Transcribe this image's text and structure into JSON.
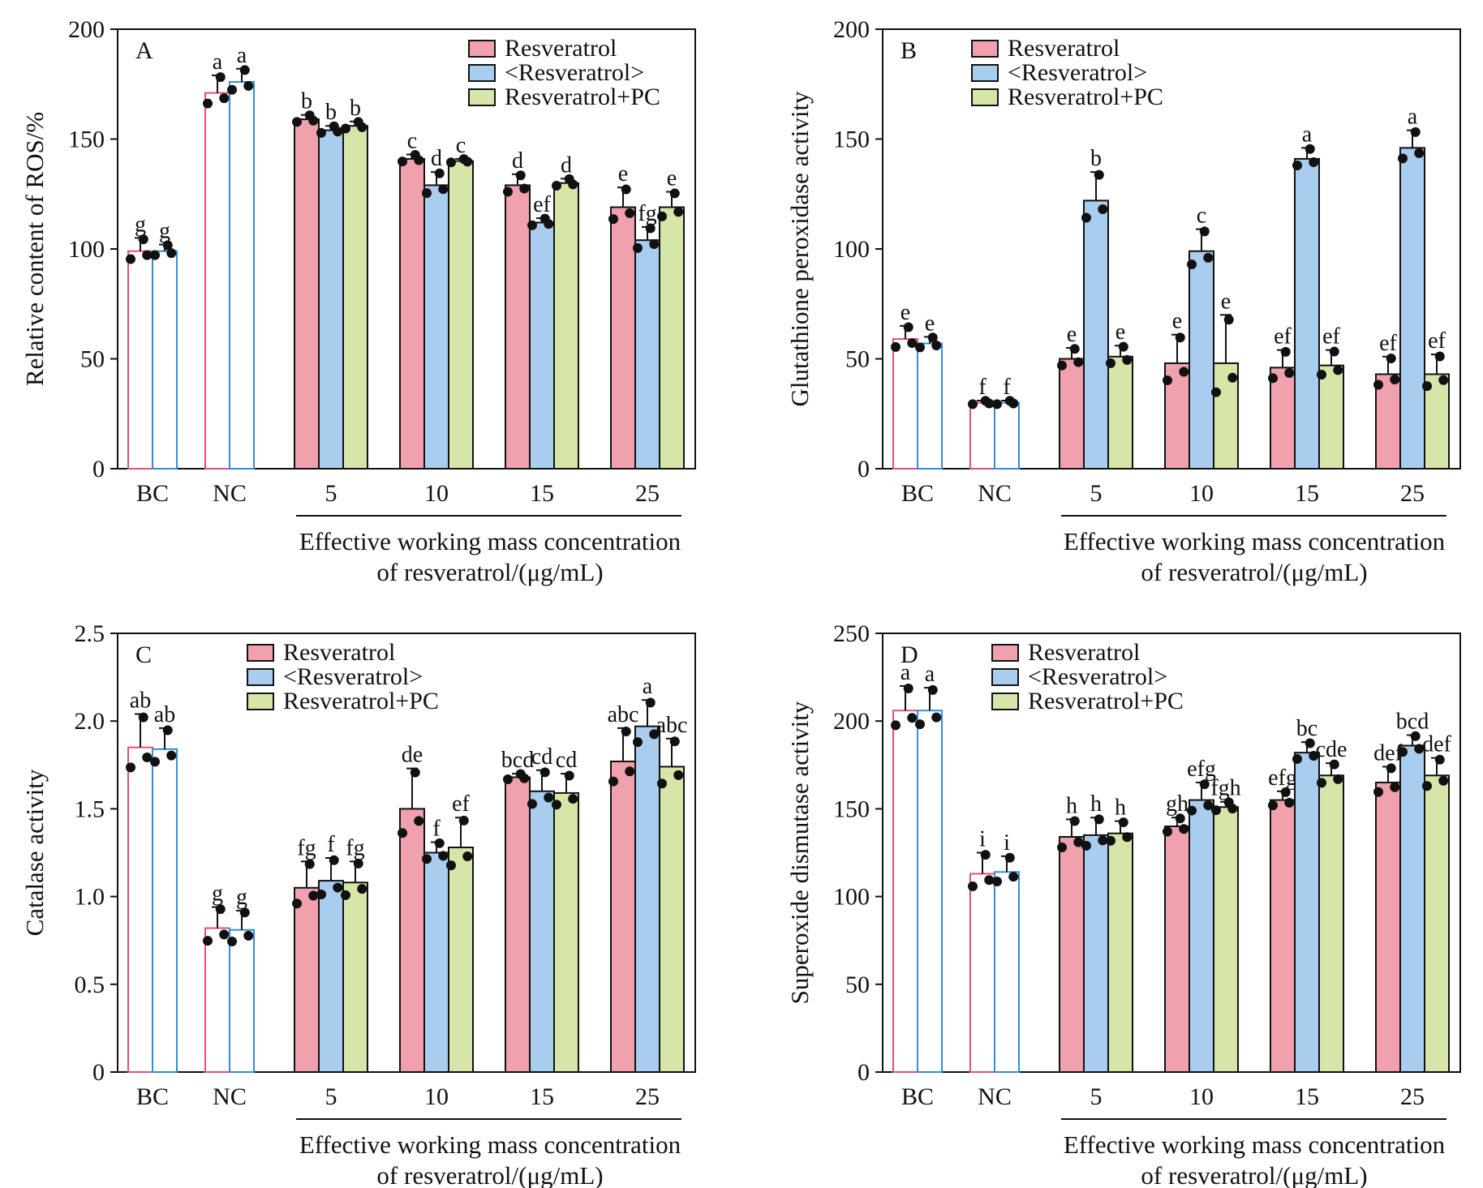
{
  "chart_data": [
    {
      "type": "bar",
      "panel": "A",
      "ylabel": "Relative content of ROS/%",
      "xlabel_line1": "Effective working mass concentration",
      "xlabel_line2": "of resveratrol/(μg/mL)",
      "ylim": [
        0,
        200
      ],
      "yticks": [
        0,
        50,
        100,
        150,
        200
      ],
      "ytick_labels": [
        "0",
        "50",
        "100",
        "150",
        "200"
      ],
      "categories": [
        "BC",
        "NC",
        "5",
        "10",
        "15",
        "25"
      ],
      "legend": [
        "Resveratrol",
        "<Resveratrol>",
        "Resveratrol+PC"
      ],
      "colors": {
        "s0": "#f0a1ad",
        "s1": "#a8cdee",
        "s2": "#d5e6a8",
        "ctrl0": "#e44d80",
        "ctrl1": "#2f8fd8"
      },
      "series": [
        {
          "name": "Resveratrol",
          "values": [
            99,
            171,
            159,
            141,
            129,
            119
          ],
          "errors": [
            6,
            8,
            2,
            2,
            5,
            9
          ],
          "letters": [
            "g",
            "a",
            "b",
            "c",
            "d",
            "e"
          ]
        },
        {
          "name": "<Resveratrol>",
          "values": [
            99,
            176,
            154,
            129,
            112,
            104
          ],
          "errors": [
            3,
            6,
            2,
            6,
            2,
            6
          ],
          "letters": [
            "g",
            "a",
            "b",
            "d",
            "ef",
            "fg"
          ]
        },
        {
          "name": "Resveratrol+PC",
          "values": [
            null,
            null,
            156,
            140,
            130,
            119
          ],
          "errors": [
            null,
            null,
            2,
            1,
            2,
            7
          ],
          "letters": [
            "",
            "",
            "b",
            "c",
            "d",
            "e"
          ]
        }
      ]
    },
    {
      "type": "bar",
      "panel": "B",
      "ylabel": "Glutathione peroxidase activity",
      "xlabel_line1": "Effective working mass concentration",
      "xlabel_line2": "of resveratrol/(μg/mL)",
      "ylim": [
        0,
        200
      ],
      "yticks": [
        0,
        50,
        100,
        150,
        200
      ],
      "ytick_labels": [
        "0",
        "50",
        "100",
        "150",
        "200"
      ],
      "categories": [
        "BC",
        "NC",
        "5",
        "10",
        "15",
        "25"
      ],
      "legend": [
        "Resveratrol",
        "<Resveratrol>",
        "Resveratrol+PC"
      ],
      "colors": {
        "s0": "#f0a1ad",
        "s1": "#a8cdee",
        "s2": "#d5e6a8",
        "ctrl0": "#e44d80",
        "ctrl1": "#2f8fd8"
      },
      "series": [
        {
          "name": "Resveratrol",
          "values": [
            59,
            30,
            50,
            48,
            46,
            43
          ],
          "errors": [
            6,
            1,
            5,
            13,
            8,
            8
          ],
          "letters": [
            "e",
            "f",
            "e",
            "e",
            "ef",
            "ef"
          ]
        },
        {
          "name": "<Resveratrol>",
          "values": [
            57,
            30,
            122,
            99,
            141,
            146
          ],
          "errors": [
            3,
            1,
            13,
            10,
            5,
            8
          ],
          "letters": [
            "e",
            "f",
            "b",
            "c",
            "a",
            "a"
          ]
        },
        {
          "name": "Resveratrol+PC",
          "values": [
            null,
            null,
            51,
            48,
            47,
            43
          ],
          "errors": [
            null,
            null,
            5,
            22,
            7,
            9
          ],
          "letters": [
            "",
            "",
            "e",
            "e",
            "ef",
            "ef"
          ]
        }
      ]
    },
    {
      "type": "bar",
      "panel": "C",
      "ylabel": "Catalase activity",
      "xlabel_line1": "Effective working mass concentration",
      "xlabel_line2": "of resveratrol/(μg/mL)",
      "ylim": [
        0,
        2.5
      ],
      "yticks": [
        0,
        0.5,
        1.0,
        1.5,
        2.0,
        2.5
      ],
      "ytick_labels": [
        "0",
        "0.5",
        "1.0",
        "1.5",
        "2.0",
        "2.5"
      ],
      "categories": [
        "BC",
        "NC",
        "5",
        "10",
        "15",
        "25"
      ],
      "legend": [
        "Resveratrol",
        "<Resveratrol>",
        "Resveratrol+PC"
      ],
      "colors": {
        "s0": "#f0a1ad",
        "s1": "#a8cdee",
        "s2": "#d5e6a8",
        "ctrl0": "#e44d80",
        "ctrl1": "#2f8fd8"
      },
      "series": [
        {
          "name": "Resveratrol",
          "values": [
            1.85,
            0.82,
            1.05,
            1.5,
            1.68,
            1.77
          ],
          "errors": [
            0.19,
            0.12,
            0.15,
            0.23,
            0.02,
            0.19
          ],
          "letters": [
            "ab",
            "g",
            "fg",
            "de",
            "bcd",
            "abc"
          ]
        },
        {
          "name": "<Resveratrol>",
          "values": [
            1.84,
            0.81,
            1.09,
            1.25,
            1.6,
            1.97
          ],
          "errors": [
            0.12,
            0.11,
            0.13,
            0.06,
            0.12,
            0.15
          ],
          "letters": [
            "ab",
            "g",
            "f",
            "f",
            "cd",
            "a"
          ]
        },
        {
          "name": "Resveratrol+PC",
          "values": [
            null,
            null,
            1.08,
            1.28,
            1.59,
            1.74
          ],
          "errors": [
            null,
            null,
            0.12,
            0.17,
            0.11,
            0.16
          ],
          "letters": [
            "",
            "",
            "fg",
            "ef",
            "cd",
            "abc"
          ]
        }
      ]
    },
    {
      "type": "bar",
      "panel": "D",
      "ylabel": "Superoxide dismutase activity",
      "xlabel_line1": "Effective working mass concentration",
      "xlabel_line2": "of resveratrol/(μg/mL)",
      "ylim": [
        0,
        250
      ],
      "yticks": [
        0,
        50,
        100,
        150,
        200,
        250
      ],
      "ytick_labels": [
        "0",
        "50",
        "100",
        "150",
        "200",
        "250"
      ],
      "categories": [
        "BC",
        "NC",
        "5",
        "10",
        "15",
        "25"
      ],
      "legend": [
        "Resveratrol",
        "<Resveratrol>",
        "Resveratrol+PC"
      ],
      "colors": {
        "s0": "#f0a1ad",
        "s1": "#a8cdee",
        "s2": "#d5e6a8",
        "ctrl0": "#e44d80",
        "ctrl1": "#2f8fd8"
      },
      "series": [
        {
          "name": "Resveratrol",
          "values": [
            206,
            113,
            134,
            140,
            155,
            165
          ],
          "errors": [
            14,
            12,
            10,
            5,
            5,
            9
          ],
          "letters": [
            "a",
            "i",
            "h",
            "gh",
            "efg",
            "def"
          ]
        },
        {
          "name": "<Resveratrol>",
          "values": [
            206,
            114,
            135,
            155,
            182,
            186
          ],
          "errors": [
            13,
            9,
            10,
            10,
            6,
            6
          ],
          "letters": [
            "a",
            "i",
            "h",
            "efg",
            "bc",
            "bcd"
          ]
        },
        {
          "name": "Resveratrol+PC",
          "values": [
            null,
            null,
            136,
            151,
            169,
            169
          ],
          "errors": [
            null,
            null,
            7,
            3,
            7,
            10
          ],
          "letters": [
            "",
            "",
            "h",
            "fgh",
            "cde",
            "def"
          ]
        }
      ]
    }
  ]
}
